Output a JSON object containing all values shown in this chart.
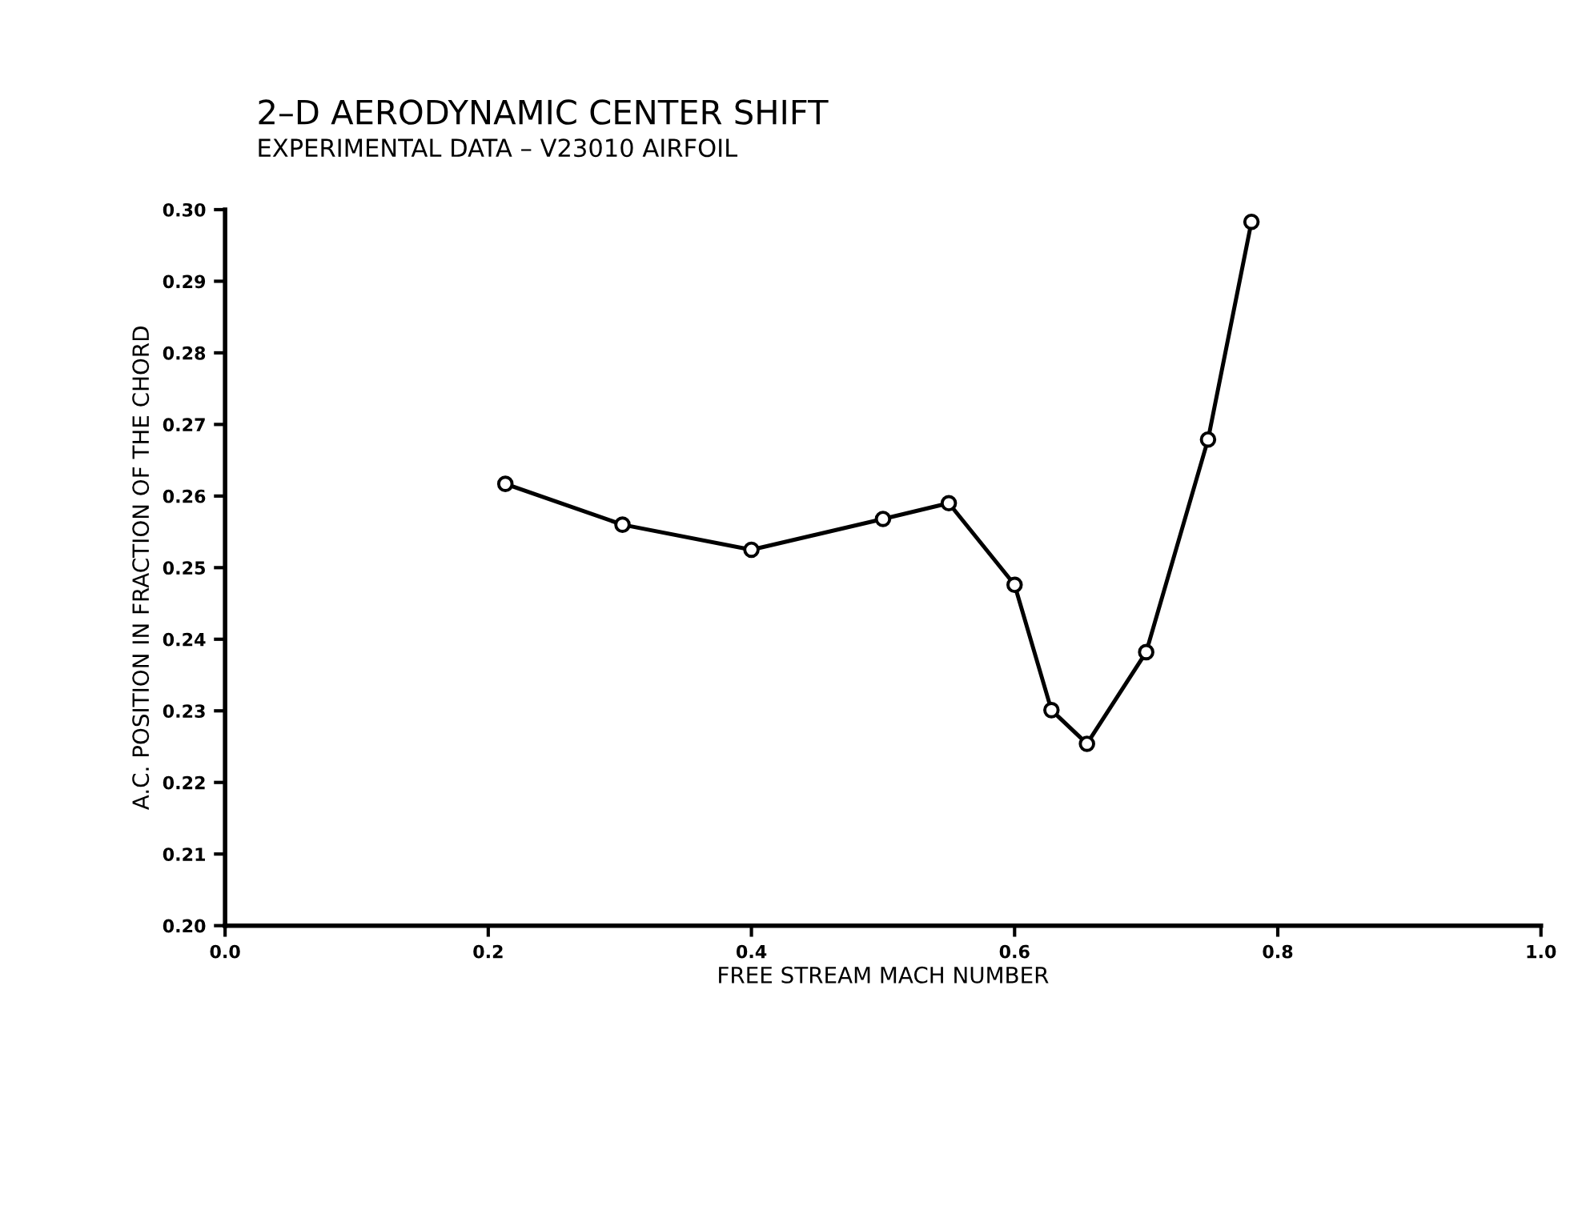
{
  "chart_data": {
    "type": "line",
    "title": "2–D AERODYNAMIC CENTER SHIFT",
    "subtitle": "EXPERIMENTAL DATA – V23010 AIRFOIL",
    "xlabel": "FREE STREAM MACH NUMBER",
    "ylabel": "A.C. POSITION IN FRACTION OF THE CHORD",
    "x": [
      0.213,
      0.302,
      0.4,
      0.5,
      0.55,
      0.6,
      0.628,
      0.655,
      0.7,
      0.747,
      0.78
    ],
    "series": [
      {
        "color": "#000000",
        "values": [
          0.2617,
          0.256,
          0.2525,
          0.2568,
          0.259,
          0.2476,
          0.2301,
          0.2254,
          0.2382,
          0.2679,
          0.2983
        ]
      }
    ],
    "xlim": [
      0.0,
      1.0
    ],
    "xticks": [
      {
        "value": 0.0,
        "label": "0.0"
      },
      0.2,
      0.4,
      0.6,
      0.8,
      {
        "value": 1.0,
        "label": "1.0"
      }
    ],
    "ylim": [
      0.2,
      0.3
    ],
    "yticks": [
      {
        "value": 0.2,
        "label": "0.20"
      },
      0.21,
      0.22,
      0.23,
      0.24,
      0.25,
      0.26,
      0.27,
      0.28,
      0.29,
      {
        "value": 0.3,
        "label": "0.30"
      }
    ],
    "grid": false,
    "legend": false,
    "marker": "circle",
    "line_style": "solid"
  }
}
